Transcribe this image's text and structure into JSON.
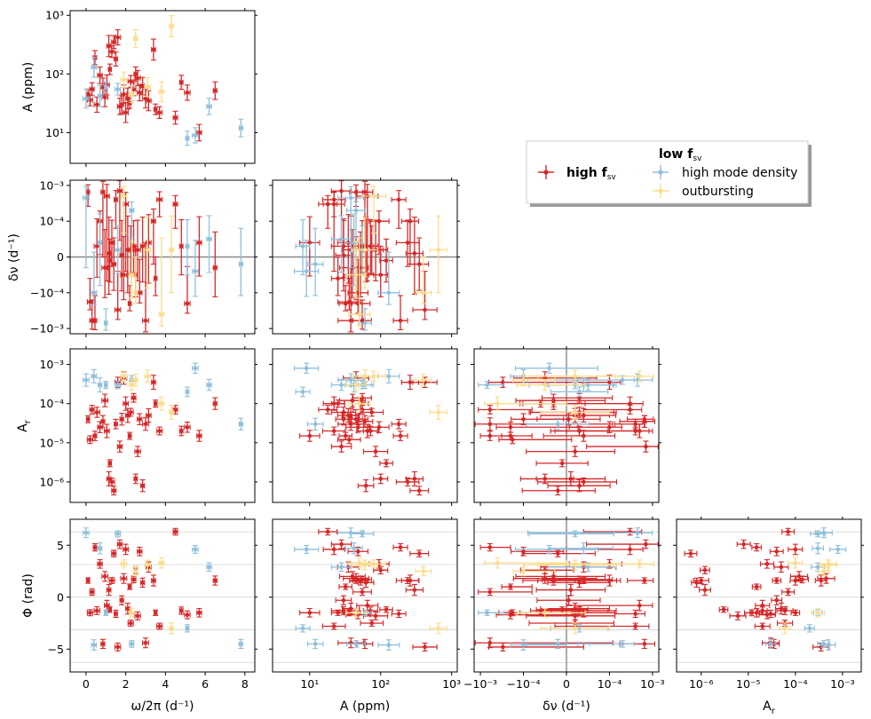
{
  "colors": {
    "high": "#d62728",
    "dense": "#8fbfdc",
    "outburst": "#fbdc8a",
    "zero_line": "#888888",
    "phase_grid": "#d0d0d0"
  },
  "legend": {
    "high_label": "high",
    "low_header": "low",
    "fsv_symbol": "f",
    "fsv_subscript": "sv",
    "dense_label": "high mode density",
    "outburst_label": "outbursting"
  },
  "chart_data": {
    "type": "scatter",
    "layout": "corner plot (lower triangle of pairwise scatter panels with error bars)",
    "variables": {
      "freq": {
        "label": "ω/2π (d⁻¹)",
        "scale": "linear",
        "range": [
          -0.8,
          8.5
        ],
        "ticks": [
          "0",
          "2",
          "4",
          "6",
          "8"
        ]
      },
      "A": {
        "label": "A (ppm)",
        "scale": "log",
        "range": [
          3,
          1200
        ],
        "ticks": [
          "10¹",
          "10²",
          "10³"
        ]
      },
      "dnu": {
        "label": "δν (d⁻¹)",
        "scale": "symlog",
        "linthresh": 0.0001,
        "range": [
          -0.0014,
          0.0014
        ],
        "ticks": [
          "−10⁻³",
          "−10⁻⁴",
          "0",
          "10⁻⁴",
          "10⁻³"
        ]
      },
      "Ar": {
        "label": "A",
        "label_sub": "r",
        "scale": "log",
        "range": [
          3e-07,
          0.0025
        ],
        "ticks": [
          "10⁻⁶",
          "10⁻⁵",
          "10⁻⁴",
          "10⁻³"
        ]
      },
      "phi": {
        "label": "Φ (rad)",
        "scale": "linear",
        "range": [
          -7.2,
          7.5
        ],
        "ticks": [
          "−5",
          "0",
          "5"
        ]
      }
    },
    "series": [
      {
        "name": "high f_sv",
        "points": [
          {
            "freq": 0.1,
            "A": 45,
            "dnu": 0.00065,
            "Ar": 4e-05,
            "phi": 1.6
          },
          {
            "freq": 0.2,
            "A": 36,
            "dnu": -0.00018,
            "Ar": 1.2e-05,
            "phi": -1.5
          },
          {
            "freq": 0.3,
            "A": 55,
            "dnu": -0.0006,
            "Ar": 7e-05,
            "phi": 0.5
          },
          {
            "freq": 0.45,
            "A": 190,
            "dnu": -0.0006,
            "Ar": 1.5e-05,
            "phi": 4.8
          },
          {
            "freq": 0.55,
            "A": 30,
            "dnu": 3e-05,
            "Ar": 6e-05,
            "phi": -1.3
          },
          {
            "freq": 0.7,
            "A": 95,
            "dnu": 0.0001,
            "Ar": 2.5e-05,
            "phi": 3.2
          },
          {
            "freq": 0.85,
            "A": 60,
            "dnu": 0.00065,
            "Ar": 3.5e-05,
            "phi": -4.5
          },
          {
            "freq": 0.95,
            "A": 40,
            "dnu": -3e-05,
            "Ar": 0.00012,
            "phi": 2.0
          },
          {
            "freq": 1.05,
            "A": 65,
            "dnu": 0.0005,
            "Ar": 2e-05,
            "phi": -0.8
          },
          {
            "freq": 1.15,
            "A": 300,
            "dnu": 1e-05,
            "Ar": 1.2e-06,
            "phi": 0.7
          },
          {
            "freq": 1.2,
            "A": 120,
            "dnu": -1e-05,
            "Ar": 3e-06,
            "phi": -1.2
          },
          {
            "freq": 1.3,
            "A": 240,
            "dnu": 4e-05,
            "Ar": 1e-06,
            "phi": 1.6
          },
          {
            "freq": 1.4,
            "A": 350,
            "dnu": -2e-05,
            "Ar": 6e-07,
            "phi": 4.2
          },
          {
            "freq": 1.5,
            "A": 180,
            "dnu": 0.0004,
            "Ar": 3e-05,
            "phi": -1.6
          },
          {
            "freq": 1.6,
            "A": 420,
            "dnu": -0.0003,
            "Ar": 0.00035,
            "phi": -4.8
          },
          {
            "freq": 1.7,
            "A": 28,
            "dnu": 0.0007,
            "Ar": 8e-06,
            "phi": 5.1
          },
          {
            "freq": 1.8,
            "A": 30,
            "dnu": 5e-06,
            "Ar": 4e-05,
            "phi": -0.3
          },
          {
            "freq": 1.9,
            "A": 45,
            "dnu": -5e-05,
            "Ar": 0.00045,
            "phi": 1.8
          },
          {
            "freq": 2.0,
            "A": 22,
            "dnu": 0.0003,
            "Ar": 0.0001,
            "phi": 4.6
          },
          {
            "freq": 2.1,
            "A": 38,
            "dnu": 2e-05,
            "Ar": 5e-05,
            "phi": -1.1
          },
          {
            "freq": 2.2,
            "A": 32,
            "dnu": -0.0002,
            "Ar": 1.5e-05,
            "phi": 1.0
          },
          {
            "freq": 2.25,
            "A": 75,
            "dnu": 2e-05,
            "Ar": 6e-05,
            "phi": -2.5
          },
          {
            "freq": 2.4,
            "A": 55,
            "dnu": 3e-05,
            "Ar": 0.00014,
            "phi": 1.7
          },
          {
            "freq": 2.5,
            "A": 100,
            "dnu": -5e-05,
            "Ar": 1.2e-06,
            "phi": 2.6
          },
          {
            "freq": 2.6,
            "A": 85,
            "dnu": 2e-05,
            "Ar": 6e-06,
            "phi": -1.8
          },
          {
            "freq": 2.7,
            "A": 48,
            "dnu": -0.0001,
            "Ar": 4e-05,
            "phi": 4.4
          },
          {
            "freq": 2.85,
            "A": 62,
            "dnu": 3e-05,
            "Ar": 8e-07,
            "phi": 1.4
          },
          {
            "freq": 3.0,
            "A": 38,
            "dnu": -0.0006,
            "Ar": 3e-05,
            "phi": -4.4
          },
          {
            "freq": 3.15,
            "A": 35,
            "dnu": 4e-05,
            "Ar": 5e-05,
            "phi": 2.9
          },
          {
            "freq": 3.4,
            "A": 260,
            "dnu": 0.0001,
            "Ar": 0.00035,
            "phi": 1.6
          },
          {
            "freq": 3.5,
            "A": 25,
            "dnu": -6e-05,
            "Ar": 0.0001,
            "phi": -1.5
          },
          {
            "freq": 3.7,
            "A": 22,
            "dnu": 0.0004,
            "Ar": 2e-05,
            "phi": -2.8
          },
          {
            "freq": 4.5,
            "A": 18,
            "dnu": 0.0003,
            "Ar": 7e-05,
            "phi": 6.3
          },
          {
            "freq": 4.8,
            "A": 72,
            "dnu": 3e-05,
            "Ar": 2e-05,
            "phi": -1.3
          },
          {
            "freq": 5.1,
            "A": 48,
            "dnu": -0.0002,
            "Ar": 2.5e-05,
            "phi": -1.7
          },
          {
            "freq": 5.7,
            "A": 10,
            "dnu": 4e-05,
            "Ar": 1.5e-05,
            "phi": -1.5
          },
          {
            "freq": 6.5,
            "A": 52,
            "dnu": -3e-05,
            "Ar": 0.0001,
            "phi": 1.6
          }
        ]
      },
      {
        "name": "high mode density",
        "points": [
          {
            "freq": 0.0,
            "A": 38,
            "dnu": 0.00045,
            "Ar": 0.0004,
            "phi": 6.2
          },
          {
            "freq": 0.4,
            "A": 130,
            "dnu": -0.0001,
            "Ar": 0.0005,
            "phi": -4.6
          },
          {
            "freq": 0.7,
            "A": 42,
            "dnu": 4e-05,
            "Ar": 0.0003,
            "phi": 4.7
          },
          {
            "freq": 1.0,
            "A": 60,
            "dnu": -0.0007,
            "Ar": 0.0003,
            "phi": -1.5
          },
          {
            "freq": 1.6,
            "A": 55,
            "dnu": 2e-05,
            "Ar": 0.0003,
            "phi": 6.1
          },
          {
            "freq": 2.3,
            "A": 45,
            "dnu": 0.0002,
            "Ar": 0.0004,
            "phi": -4.5
          },
          {
            "freq": 5.1,
            "A": 8,
            "dnu": 3e-05,
            "Ar": 0.0002,
            "phi": -3.0
          },
          {
            "freq": 5.5,
            "A": 9,
            "dnu": -4e-05,
            "Ar": 0.0008,
            "phi": 4.6
          },
          {
            "freq": 6.2,
            "A": 28,
            "dnu": 5e-05,
            "Ar": 0.0003,
            "phi": 2.9
          },
          {
            "freq": 7.8,
            "A": 12,
            "dnu": -2e-05,
            "Ar": 3e-05,
            "phi": -4.5
          }
        ]
      },
      {
        "name": "outbursting",
        "points": [
          {
            "freq": 1.9,
            "A": 80,
            "dnu": 0.0005,
            "Ar": 0.0005,
            "phi": 3.2
          },
          {
            "freq": 2.3,
            "A": 45,
            "dnu": -5e-05,
            "Ar": 0.0003,
            "phi": -1.5
          },
          {
            "freq": 2.5,
            "A": 400,
            "dnu": -0.0001,
            "Ar": 0.0004,
            "phi": 2.5
          },
          {
            "freq": 3.1,
            "A": 60,
            "dnu": 2e-05,
            "Ar": 0.0005,
            "phi": 3.1
          },
          {
            "freq": 3.8,
            "A": 50,
            "dnu": -0.0004,
            "Ar": 0.0001,
            "phi": 3.3
          },
          {
            "freq": 4.3,
            "A": 650,
            "dnu": 2e-05,
            "Ar": 6e-05,
            "phi": -3.0
          }
        ]
      }
    ]
  }
}
